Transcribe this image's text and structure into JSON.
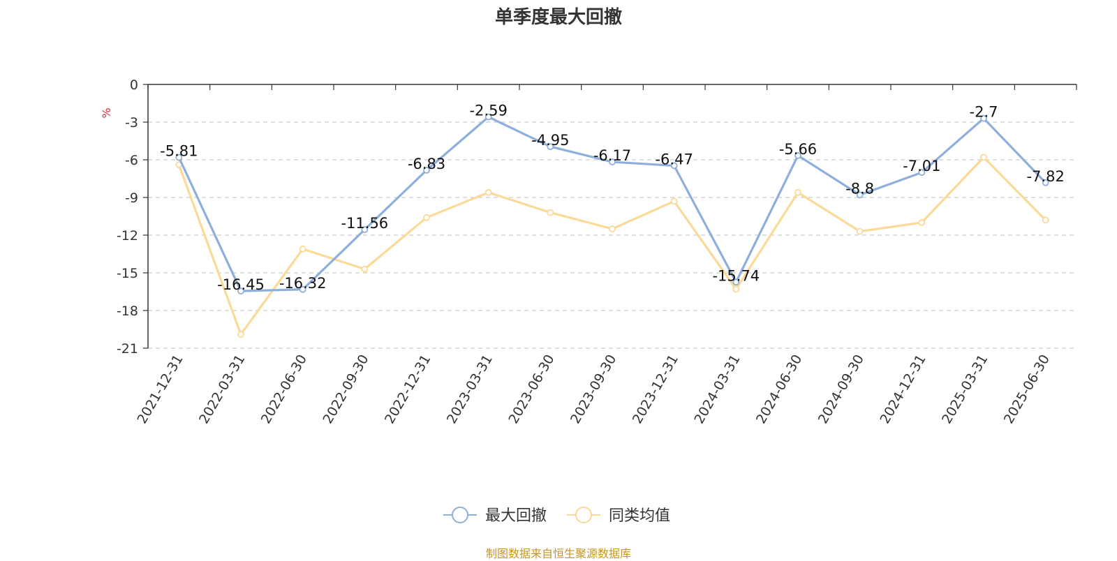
{
  "title": "单季度最大回撤",
  "source_note": "制图数据来自恒生聚源数据库",
  "chart_data": {
    "type": "line",
    "title": "单季度最大回撤",
    "ylabel": "%",
    "ylim": [
      -21,
      0
    ],
    "yticks": [
      0,
      -3,
      -6,
      -9,
      -12,
      -15,
      -18,
      -21
    ],
    "grid": true,
    "legend_position": "bottom",
    "categories": [
      "2021-12-31",
      "2022-03-31",
      "2022-06-30",
      "2022-09-30",
      "2022-12-31",
      "2023-03-31",
      "2023-06-30",
      "2023-09-30",
      "2023-12-31",
      "2024-03-31",
      "2024-06-30",
      "2024-09-30",
      "2024-12-31",
      "2025-03-31",
      "2025-06-30"
    ],
    "series": [
      {
        "name": "最大回撤",
        "color": "#8eaedb",
        "values": [
          -5.81,
          -16.45,
          -16.32,
          -11.56,
          -6.83,
          -2.59,
          -4.95,
          -6.17,
          -6.47,
          -15.74,
          -5.66,
          -8.8,
          -7.01,
          -2.7,
          -7.82
        ],
        "labels": [
          "-5.81",
          "-16.45",
          "-16.32",
          "-11.56",
          "-6.83",
          "-2.59",
          "-4.95",
          "-6.17",
          "-6.47",
          "-15.74",
          "-5.66",
          "-8.8",
          "-7.01",
          "-2.7",
          "-7.82"
        ]
      },
      {
        "name": "同类均值",
        "color": "#fbd996",
        "values": [
          -6.4,
          -19.9,
          -13.1,
          -14.7,
          -10.6,
          -8.6,
          -10.2,
          -11.5,
          -9.3,
          -16.3,
          -8.6,
          -11.7,
          -11.0,
          -5.8,
          -10.8
        ]
      }
    ]
  }
}
